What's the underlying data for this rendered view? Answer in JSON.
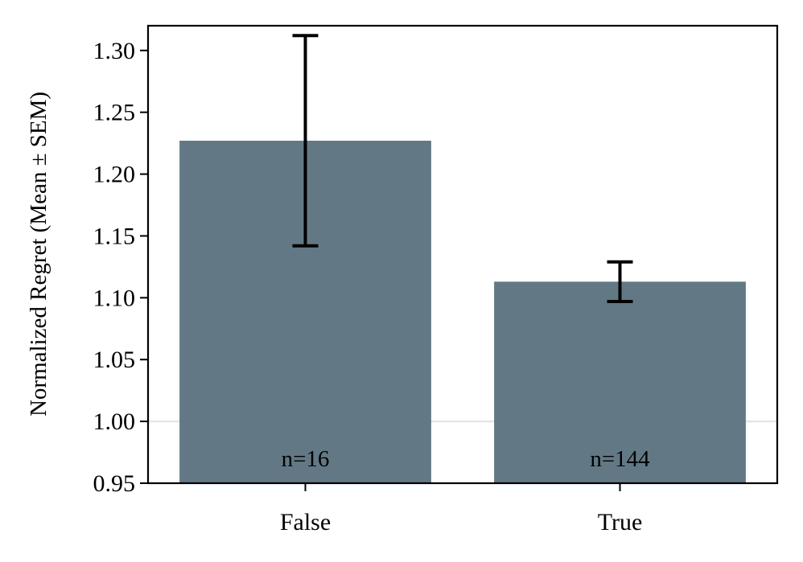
{
  "chart_data": {
    "type": "bar",
    "categories": [
      "False",
      "True"
    ],
    "values": [
      1.227,
      1.113
    ],
    "errors": [
      0.085,
      0.016
    ],
    "counts_labels": [
      "n=16",
      "n=144"
    ],
    "ylabel": "Normalized Regret (Mean ± SEM)",
    "xlabel": "",
    "ylim": [
      0.95,
      1.32
    ],
    "yticks": [
      0.95,
      1.0,
      1.05,
      1.1,
      1.15,
      1.2,
      1.25,
      1.3
    ],
    "ytick_labels": [
      "0.95",
      "1.00",
      "1.05",
      "1.10",
      "1.15",
      "1.20",
      "1.25",
      "1.30"
    ],
    "reference_line": 1.0,
    "grid": false,
    "colors": {
      "bar": "#627985",
      "error_bar": "#000000",
      "reference_line": "#e6e6e6",
      "axes": "#000000"
    }
  }
}
